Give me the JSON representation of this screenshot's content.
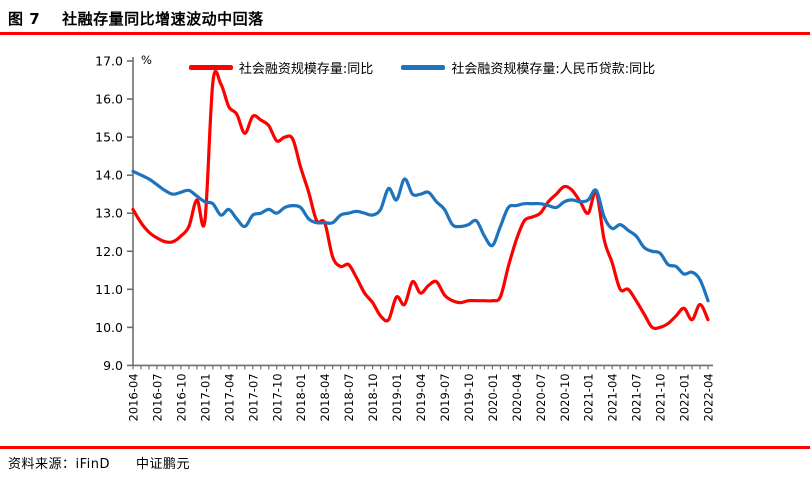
{
  "header": {
    "figure_label": "图 7",
    "title": "社融存量同比增速波动中回落"
  },
  "footer": {
    "source_label": "资料来源：",
    "source_value": "iFinD",
    "brand": "中证鹏元"
  },
  "colors": {
    "rule_red": "#FF0000",
    "axis_gray": "#6e6e6e",
    "label_black": "#000000"
  },
  "chart_data": {
    "type": "line",
    "title": "社融存量同比增速波动中回落",
    "unit_label": "%",
    "ylim": [
      9.0,
      17.0
    ],
    "ytick_step": 1.0,
    "x_label_every": 3,
    "grid": false,
    "legend_position": "top",
    "x": [
      "2016-04",
      "2016-05",
      "2016-06",
      "2016-07",
      "2016-08",
      "2016-09",
      "2016-10",
      "2016-11",
      "2016-12",
      "2017-01",
      "2017-02",
      "2017-03",
      "2017-04",
      "2017-05",
      "2017-06",
      "2017-07",
      "2017-08",
      "2017-09",
      "2017-10",
      "2017-11",
      "2017-12",
      "2018-01",
      "2018-02",
      "2018-03",
      "2018-04",
      "2018-05",
      "2018-06",
      "2018-07",
      "2018-08",
      "2018-09",
      "2018-10",
      "2018-11",
      "2018-12",
      "2019-01",
      "2019-02",
      "2019-03",
      "2019-04",
      "2019-05",
      "2019-06",
      "2019-07",
      "2019-08",
      "2019-09",
      "2019-10",
      "2019-11",
      "2019-12",
      "2020-01",
      "2020-02",
      "2020-03",
      "2020-04",
      "2020-05",
      "2020-06",
      "2020-07",
      "2020-08",
      "2020-09",
      "2020-10",
      "2020-11",
      "2020-12",
      "2021-01",
      "2021-02",
      "2021-03",
      "2021-04",
      "2021-05",
      "2021-06",
      "2021-07",
      "2021-08",
      "2021-09",
      "2021-10",
      "2021-11",
      "2021-12",
      "2022-01",
      "2022-02",
      "2022-03",
      "2022-04"
    ],
    "series": [
      {
        "name": "社会融资规模存量:同比",
        "color": "#FF0000",
        "values": [
          13.1,
          12.75,
          12.5,
          12.35,
          12.25,
          12.25,
          12.4,
          12.65,
          13.35,
          12.8,
          16.45,
          16.4,
          15.8,
          15.6,
          15.1,
          15.55,
          15.45,
          15.3,
          14.9,
          15.0,
          14.95,
          14.2,
          13.55,
          12.8,
          12.75,
          11.85,
          11.6,
          11.65,
          11.3,
          10.9,
          10.65,
          10.3,
          10.2,
          10.8,
          10.6,
          11.2,
          10.9,
          11.1,
          11.2,
          10.85,
          10.7,
          10.65,
          10.7,
          10.7,
          10.7,
          10.7,
          10.8,
          11.6,
          12.3,
          12.8,
          12.9,
          13.0,
          13.3,
          13.5,
          13.7,
          13.6,
          13.3,
          13.0,
          13.55,
          12.3,
          11.7,
          11.0,
          11.0,
          10.7,
          10.35,
          10.0,
          10.0,
          10.1,
          10.3,
          10.5,
          10.2,
          10.6,
          10.2
        ]
      },
      {
        "name": "社会融资规模存量:人民币贷款:同比",
        "color": "#1E73BE",
        "values": [
          14.1,
          14.0,
          13.9,
          13.75,
          13.6,
          13.5,
          13.55,
          13.6,
          13.45,
          13.3,
          13.25,
          12.95,
          13.1,
          12.85,
          12.65,
          12.95,
          13.0,
          13.1,
          13.0,
          13.15,
          13.2,
          13.15,
          12.85,
          12.75,
          12.75,
          12.75,
          12.95,
          13.0,
          13.05,
          13.0,
          12.95,
          13.1,
          13.65,
          13.35,
          13.9,
          13.5,
          13.5,
          13.55,
          13.3,
          13.1,
          12.7,
          12.65,
          12.7,
          12.8,
          12.4,
          12.15,
          12.65,
          13.15,
          13.2,
          13.25,
          13.25,
          13.25,
          13.2,
          13.15,
          13.3,
          13.35,
          13.3,
          13.35,
          13.6,
          12.9,
          12.6,
          12.7,
          12.55,
          12.4,
          12.1,
          12.0,
          11.95,
          11.65,
          11.6,
          11.4,
          11.45,
          11.25,
          10.7
        ]
      }
    ]
  }
}
